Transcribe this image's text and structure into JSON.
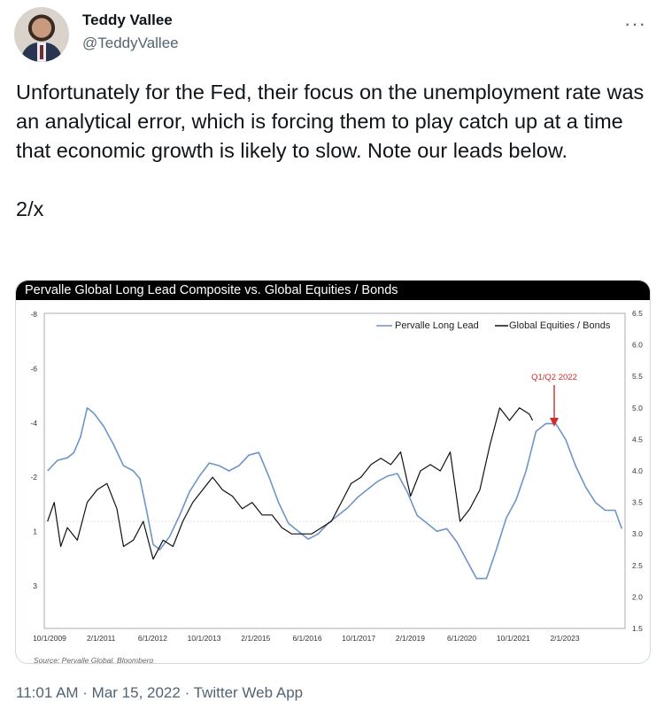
{
  "tweet": {
    "author_name": "Teddy Vallee",
    "author_handle": "@TeddyVallee",
    "more_icon": "more-dots-icon",
    "text": "Unfortunately for the Fed, their focus on the unemployment rate was an analytical error, which is forcing them to play catch up at a time that economic growth is likely to slow. Note our leads below.\n\n2/x",
    "timestamp": "11:01 AM · Mar 15, 2022 · Twitter Web App"
  },
  "chart_data": {
    "type": "line",
    "title": "Pervalle Global Long Lead Composite vs. Global Equities / Bonds",
    "source": "Source: Pervalle Global, Bloomberg",
    "annotation": "Q1/Q2 2022",
    "legend_placement": "top-right",
    "grid": false,
    "x_tick_labels": [
      "10/1/2009",
      "2/1/2011",
      "6/1/2012",
      "10/1/2013",
      "2/1/2015",
      "6/1/2016",
      "10/1/2017",
      "2/1/2019",
      "6/1/2020",
      "10/1/2021",
      "2/1/2023"
    ],
    "y_left": {
      "tick_labels": [
        "-8",
        "-6",
        "-4",
        "-2",
        "1",
        "3"
      ],
      "ylim": [
        -8,
        4
      ],
      "inverted": true
    },
    "y_right": {
      "tick_labels": [
        "6.5",
        "6.0",
        "5.5",
        "5.0",
        "4.5",
        "4.0",
        "3.5",
        "3.0",
        "2.5",
        "2.0",
        "1.5"
      ],
      "ylim": [
        1.5,
        6.5
      ]
    },
    "series": [
      {
        "name": "Pervalle Long Lead",
        "axis": "left",
        "color": "#6f94c8",
        "points": [
          [
            "2009-10",
            -2.0
          ],
          [
            "2010-01",
            -2.4
          ],
          [
            "2010-04",
            -2.5
          ],
          [
            "2010-06",
            -2.7
          ],
          [
            "2010-08",
            -3.3
          ],
          [
            "2010-10",
            -4.4
          ],
          [
            "2010-12",
            -4.2
          ],
          [
            "2011-03",
            -3.7
          ],
          [
            "2011-06",
            -3.0
          ],
          [
            "2011-09",
            -2.2
          ],
          [
            "2011-12",
            -2.0
          ],
          [
            "2012-02",
            -1.7
          ],
          [
            "2012-04",
            -0.5
          ],
          [
            "2012-06",
            0.8
          ],
          [
            "2012-08",
            1.0
          ],
          [
            "2012-11",
            0.5
          ],
          [
            "2013-02",
            -0.3
          ],
          [
            "2013-05",
            -1.2
          ],
          [
            "2013-08",
            -1.8
          ],
          [
            "2013-11",
            -2.3
          ],
          [
            "2014-02",
            -2.2
          ],
          [
            "2014-05",
            -2.0
          ],
          [
            "2014-08",
            -2.2
          ],
          [
            "2014-11",
            -2.6
          ],
          [
            "2015-02",
            -2.7
          ],
          [
            "2015-05",
            -1.8
          ],
          [
            "2015-08",
            -0.8
          ],
          [
            "2015-11",
            0.0
          ],
          [
            "2016-02",
            0.3
          ],
          [
            "2016-05",
            0.6
          ],
          [
            "2016-08",
            0.4
          ],
          [
            "2016-11",
            0.0
          ],
          [
            "2017-02",
            -0.3
          ],
          [
            "2017-05",
            -0.6
          ],
          [
            "2017-08",
            -1.0
          ],
          [
            "2017-11",
            -1.3
          ],
          [
            "2018-02",
            -1.6
          ],
          [
            "2018-05",
            -1.8
          ],
          [
            "2018-08",
            -1.9
          ],
          [
            "2018-11",
            -1.2
          ],
          [
            "2019-02",
            -0.3
          ],
          [
            "2019-05",
            0.0
          ],
          [
            "2019-08",
            0.3
          ],
          [
            "2019-11",
            0.2
          ],
          [
            "2020-02",
            0.7
          ],
          [
            "2020-05",
            1.4
          ],
          [
            "2020-08",
            2.1
          ],
          [
            "2020-11",
            2.1
          ],
          [
            "2021-02",
            1.0
          ],
          [
            "2021-05",
            -0.2
          ],
          [
            "2021-08",
            -0.9
          ],
          [
            "2021-11",
            -2.0
          ],
          [
            "2022-02",
            -3.5
          ],
          [
            "2022-05",
            -3.8
          ],
          [
            "2022-08",
            -3.8
          ],
          [
            "2022-11",
            -3.2
          ],
          [
            "2023-02",
            -2.2
          ],
          [
            "2023-05",
            -1.4
          ],
          [
            "2023-08",
            -0.8
          ],
          [
            "2023-11",
            -0.5
          ],
          [
            "2024-02",
            -0.5
          ],
          [
            "2024-04",
            0.2
          ]
        ]
      },
      {
        "name": "Global Equities / Bonds",
        "axis": "right",
        "color": "#111111",
        "points": [
          [
            "2009-10",
            3.2
          ],
          [
            "2009-12",
            3.5
          ],
          [
            "2010-02",
            2.8
          ],
          [
            "2010-04",
            3.1
          ],
          [
            "2010-07",
            2.9
          ],
          [
            "2010-10",
            3.5
          ],
          [
            "2011-01",
            3.7
          ],
          [
            "2011-04",
            3.8
          ],
          [
            "2011-07",
            3.4
          ],
          [
            "2011-09",
            2.8
          ],
          [
            "2011-12",
            2.9
          ],
          [
            "2012-03",
            3.2
          ],
          [
            "2012-06",
            2.6
          ],
          [
            "2012-09",
            2.9
          ],
          [
            "2012-12",
            2.8
          ],
          [
            "2013-03",
            3.2
          ],
          [
            "2013-06",
            3.5
          ],
          [
            "2013-09",
            3.7
          ],
          [
            "2013-12",
            3.9
          ],
          [
            "2014-03",
            3.7
          ],
          [
            "2014-06",
            3.6
          ],
          [
            "2014-09",
            3.4
          ],
          [
            "2014-12",
            3.5
          ],
          [
            "2015-03",
            3.3
          ],
          [
            "2015-06",
            3.3
          ],
          [
            "2015-09",
            3.1
          ],
          [
            "2015-12",
            3.0
          ],
          [
            "2016-03",
            3.0
          ],
          [
            "2016-06",
            3.0
          ],
          [
            "2016-09",
            3.1
          ],
          [
            "2016-12",
            3.2
          ],
          [
            "2017-03",
            3.5
          ],
          [
            "2017-06",
            3.8
          ],
          [
            "2017-09",
            3.9
          ],
          [
            "2017-12",
            4.1
          ],
          [
            "2018-03",
            4.2
          ],
          [
            "2018-06",
            4.1
          ],
          [
            "2018-09",
            4.3
          ],
          [
            "2018-12",
            3.6
          ],
          [
            "2019-03",
            4.0
          ],
          [
            "2019-06",
            4.1
          ],
          [
            "2019-09",
            4.0
          ],
          [
            "2019-12",
            4.3
          ],
          [
            "2020-03",
            3.2
          ],
          [
            "2020-06",
            3.4
          ],
          [
            "2020-09",
            3.7
          ],
          [
            "2020-12",
            4.4
          ],
          [
            "2021-03",
            5.0
          ],
          [
            "2021-06",
            4.8
          ],
          [
            "2021-09",
            5.0
          ],
          [
            "2021-12",
            4.9
          ],
          [
            "2022-01",
            4.8
          ]
        ]
      }
    ]
  }
}
